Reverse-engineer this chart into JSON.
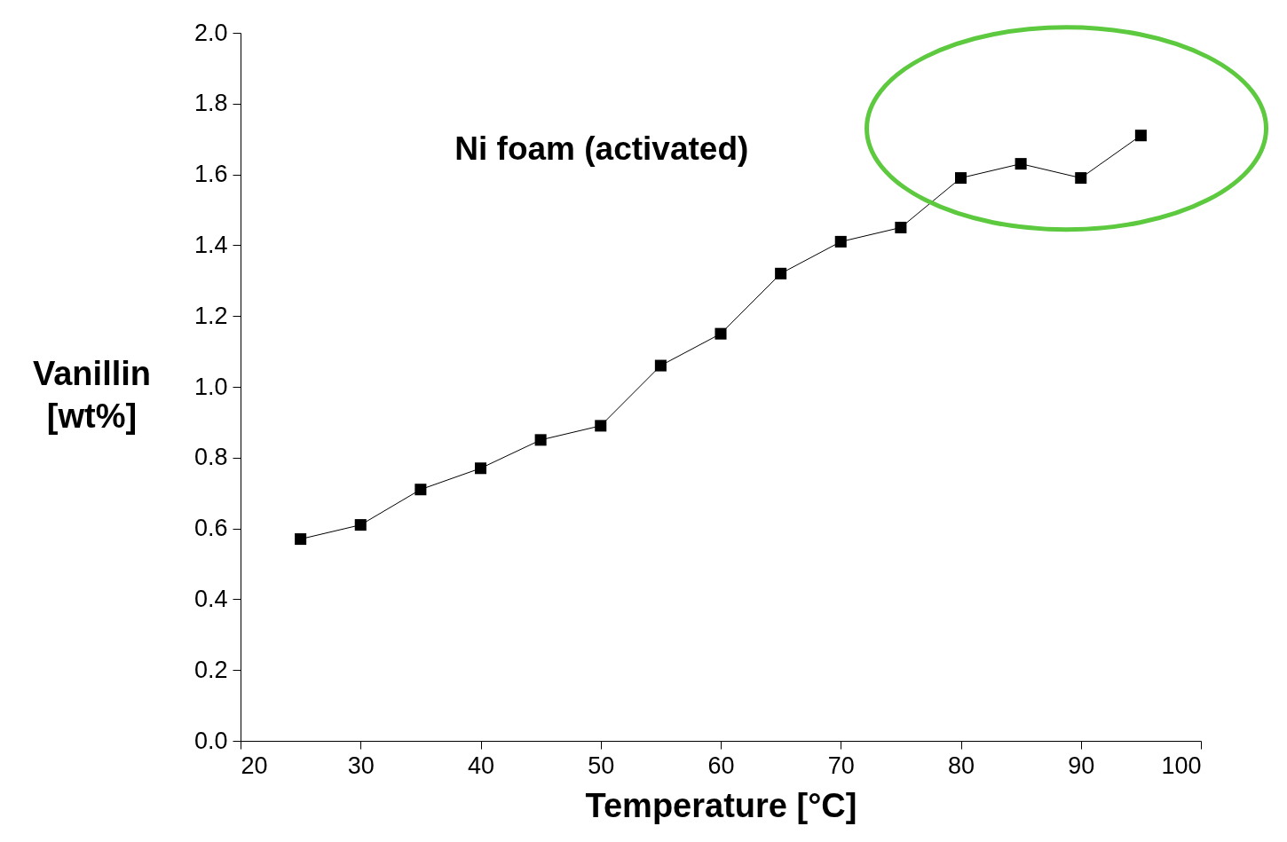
{
  "chart_data": {
    "type": "line",
    "xlabel": "Temperature [°C]",
    "ylabel": "Vanillin [wt%]",
    "x": [
      25,
      30,
      35,
      40,
      45,
      50,
      55,
      60,
      65,
      70,
      75,
      80,
      85,
      90,
      95
    ],
    "series": [
      {
        "color": "#000000",
        "values": [
          0.57,
          0.61,
          0.71,
          0.77,
          0.85,
          0.89,
          1.06,
          1.15,
          1.32,
          1.41,
          1.45,
          1.59,
          1.63,
          1.59,
          1.71
        ]
      }
    ],
    "xlim": [
      20,
      100
    ],
    "xticks": [
      20,
      30,
      40,
      50,
      60,
      70,
      80,
      90,
      100
    ],
    "ylim": [
      0,
      2.0
    ],
    "yticks": [
      {
        "value": 0,
        "label": "0.0"
      },
      {
        "value": 0.2,
        "label": "0.2"
      },
      {
        "value": 0.4,
        "label": "0.4"
      },
      {
        "value": 0.6,
        "label": "0.6"
      },
      {
        "value": 0.8,
        "label": "0.8"
      },
      {
        "value": 1.0,
        "label": "1.0"
      },
      {
        "value": 1.2,
        "label": "1.2"
      },
      {
        "value": 1.4,
        "label": "1.4"
      },
      {
        "value": 1.6,
        "label": "1.6"
      },
      {
        "value": 1.8,
        "label": "1.8"
      },
      {
        "value": 2.0,
        "label": "2.0"
      }
    ],
    "marker": "square",
    "line_style": "solid",
    "grid": false,
    "annotations": [
      "Ni foam (activated)"
    ]
  }
}
